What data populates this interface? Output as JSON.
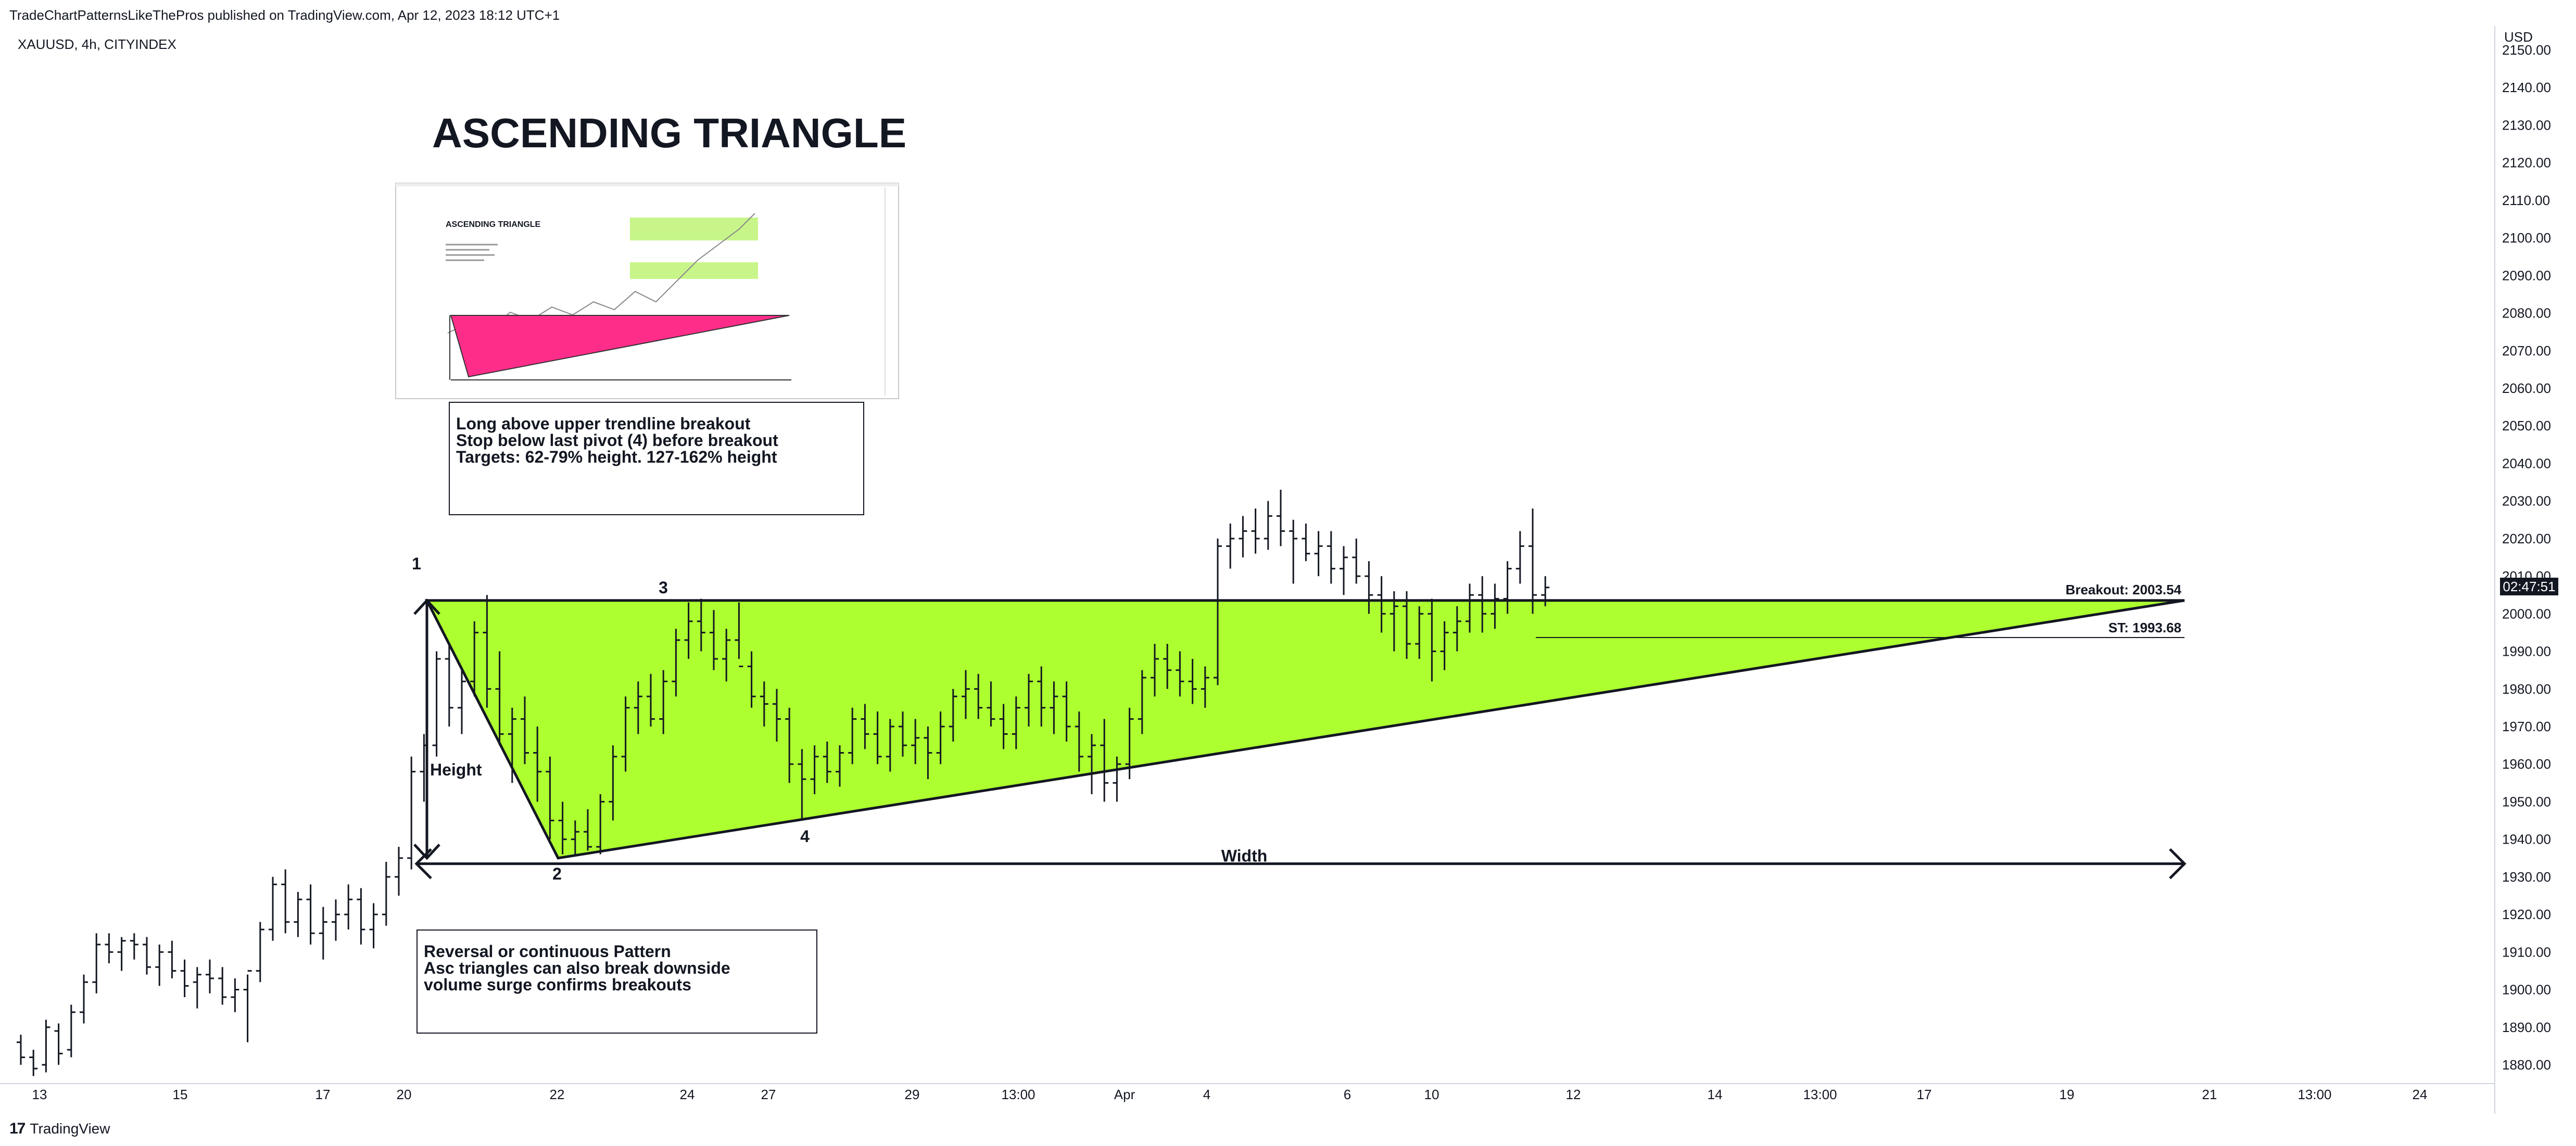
{
  "header": {
    "published": "TradeChartPatternsLikeThePros published on TradingView.com, Apr 12, 2023 18:12 UTC+1",
    "symbol": "XAUUSD, 4h, CITYINDEX",
    "currency": "USD",
    "current_price_tag": "02:47:51"
  },
  "footer": {
    "brand_logo": "17",
    "brand": "TradingView"
  },
  "annotations": {
    "title": "ASCENDING TRIANGLE",
    "note_top": [
      "Long above upper trendline breakout",
      "Stop below last pivot (4) before breakout",
      "Targets: 62-79% height. 127-162% height"
    ],
    "note_bottom": [
      "Reversal or continuous Pattern",
      "Asc triangles can also break downside",
      "volume surge confirms breakouts"
    ],
    "pivot_labels": [
      "1",
      "2",
      "3",
      "4"
    ],
    "height_label": "Height",
    "width_label": "Width",
    "breakout_label": "Breakout: 2003.54",
    "stop_label": "ST: 1993.68"
  },
  "colors": {
    "triangle_fill": "#adff2f",
    "thumbnail_triangle": "#ff2d8a",
    "line": "#131722",
    "background": "#ffffff"
  },
  "chart_data": {
    "type": "ohlc",
    "ylim": [
      1875,
      2155
    ],
    "y_ticks": [
      1880,
      1890,
      1900,
      1910,
      1920,
      1930,
      1940,
      1950,
      1960,
      1970,
      1980,
      1990,
      2000,
      2010,
      2020,
      2030,
      2040,
      2050,
      2060,
      2070,
      2080,
      2090,
      2100,
      2110,
      2120,
      2130,
      2140,
      2150
    ],
    "y_tick_labels": [
      "1880.00",
      "1890.00",
      "1900.00",
      "1910.00",
      "1920.00",
      "1930.00",
      "1940.00",
      "1950.00",
      "1960.00",
      "1970.00",
      "1980.00",
      "1990.00",
      "2000.00",
      "2010.00",
      "2020.00",
      "2030.00",
      "2040.00",
      "2050.00",
      "2060.00",
      "2070.00",
      "2080.00",
      "2090.00",
      "2100.00",
      "2110.00",
      "2120.00",
      "2130.00",
      "2140.00",
      "2150.00"
    ],
    "x_tick_labels": [
      "13",
      "15",
      "17",
      "20",
      "22",
      "24",
      "27",
      "29",
      "13:00",
      "Apr",
      "4",
      "6",
      "10",
      "12",
      "14",
      "13:00",
      "17",
      "19",
      "21",
      "13:00",
      "24"
    ],
    "bars_per_day": 6,
    "ohlc": [
      [
        1886,
        1888,
        1880,
        1882
      ],
      [
        1882,
        1884,
        1877,
        1879
      ],
      [
        1880,
        1892,
        1878,
        1890
      ],
      [
        1889,
        1891,
        1880,
        1883
      ],
      [
        1884,
        1896,
        1882,
        1894
      ],
      [
        1894,
        1904,
        1891,
        1902
      ],
      [
        1902,
        1915,
        1899,
        1912
      ],
      [
        1912,
        1915,
        1907,
        1910
      ],
      [
        1910,
        1914,
        1905,
        1913
      ],
      [
        1913,
        1915,
        1908,
        1912
      ],
      [
        1912,
        1914,
        1904,
        1906
      ],
      [
        1906,
        1912,
        1901,
        1910
      ],
      [
        1910,
        1913,
        1903,
        1905
      ],
      [
        1905,
        1908,
        1898,
        1901
      ],
      [
        1902,
        1906,
        1895,
        1904
      ],
      [
        1904,
        1908,
        1899,
        1903
      ],
      [
        1903,
        1906,
        1896,
        1898
      ],
      [
        1898,
        1903,
        1894,
        1900
      ],
      [
        1900,
        1904,
        1886,
        1905
      ],
      [
        1905,
        1918,
        1902,
        1916
      ],
      [
        1916,
        1930,
        1913,
        1928
      ],
      [
        1928,
        1932,
        1915,
        1918
      ],
      [
        1918,
        1926,
        1914,
        1924
      ],
      [
        1924,
        1928,
        1912,
        1915
      ],
      [
        1915,
        1922,
        1908,
        1918
      ],
      [
        1918,
        1924,
        1913,
        1920
      ],
      [
        1920,
        1928,
        1916,
        1924
      ],
      [
        1924,
        1927,
        1912,
        1916
      ],
      [
        1916,
        1923,
        1911,
        1920
      ],
      [
        1920,
        1934,
        1917,
        1930
      ],
      [
        1930,
        1938,
        1925,
        1935
      ],
      [
        1935,
        1962,
        1932,
        1958
      ],
      [
        1958,
        1968,
        1950,
        1965
      ],
      [
        1965,
        1990,
        1962,
        1988
      ],
      [
        1988,
        1992,
        1970,
        1975
      ],
      [
        1975,
        1985,
        1968,
        1982
      ],
      [
        1982,
        1998,
        1978,
        1995
      ],
      [
        1995,
        2005,
        1975,
        1980
      ],
      [
        1980,
        1990,
        1965,
        1968
      ],
      [
        1968,
        1975,
        1955,
        1972
      ],
      [
        1972,
        1978,
        1960,
        1963
      ],
      [
        1963,
        1970,
        1950,
        1958
      ],
      [
        1958,
        1962,
        1940,
        1945
      ],
      [
        1945,
        1950,
        1936,
        1940
      ],
      [
        1940,
        1945,
        1936,
        1942
      ],
      [
        1942,
        1948,
        1937,
        1938
      ],
      [
        1938,
        1952,
        1936,
        1950
      ],
      [
        1950,
        1965,
        1945,
        1962
      ],
      [
        1962,
        1978,
        1958,
        1975
      ],
      [
        1975,
        1982,
        1968,
        1978
      ],
      [
        1978,
        1984,
        1970,
        1972
      ],
      [
        1972,
        1985,
        1968,
        1982
      ],
      [
        1982,
        1996,
        1978,
        1993
      ],
      [
        1993,
        2003,
        1988,
        1998
      ],
      [
        1998,
        2004,
        1990,
        1995
      ],
      [
        1995,
        2001,
        1985,
        1988
      ],
      [
        1988,
        1996,
        1982,
        1993
      ],
      [
        1993,
        2003,
        1988,
        1986
      ],
      [
        1986,
        1990,
        1975,
        1978
      ],
      [
        1978,
        1982,
        1970,
        1976
      ],
      [
        1976,
        1980,
        1966,
        1972
      ],
      [
        1972,
        1975,
        1955,
        1960
      ],
      [
        1960,
        1964,
        1945,
        1956
      ],
      [
        1956,
        1965,
        1952,
        1962
      ],
      [
        1962,
        1966,
        1955,
        1958
      ],
      [
        1958,
        1965,
        1954,
        1963
      ],
      [
        1963,
        1975,
        1960,
        1972
      ],
      [
        1972,
        1976,
        1964,
        1968
      ],
      [
        1968,
        1974,
        1960,
        1962
      ],
      [
        1962,
        1972,
        1958,
        1970
      ],
      [
        1970,
        1974,
        1962,
        1965
      ],
      [
        1965,
        1972,
        1960,
        1967
      ],
      [
        1967,
        1970,
        1956,
        1963
      ],
      [
        1963,
        1974,
        1960,
        1970
      ],
      [
        1970,
        1980,
        1966,
        1978
      ],
      [
        1978,
        1985,
        1972,
        1980
      ],
      [
        1980,
        1984,
        1972,
        1975
      ],
      [
        1975,
        1982,
        1970,
        1972
      ],
      [
        1972,
        1976,
        1964,
        1968
      ],
      [
        1968,
        1978,
        1964,
        1975
      ],
      [
        1975,
        1984,
        1970,
        1982
      ],
      [
        1982,
        1986,
        1970,
        1975
      ],
      [
        1975,
        1982,
        1968,
        1978
      ],
      [
        1978,
        1982,
        1966,
        1970
      ],
      [
        1970,
        1974,
        1958,
        1962
      ],
      [
        1962,
        1968,
        1952,
        1965
      ],
      [
        1965,
        1972,
        1950,
        1955
      ],
      [
        1955,
        1962,
        1950,
        1960
      ],
      [
        1960,
        1975,
        1956,
        1972
      ],
      [
        1972,
        1985,
        1968,
        1983
      ],
      [
        1983,
        1992,
        1978,
        1988
      ],
      [
        1988,
        1992,
        1980,
        1985
      ],
      [
        1985,
        1990,
        1978,
        1982
      ],
      [
        1982,
        1988,
        1976,
        1980
      ],
      [
        1980,
        1986,
        1975,
        1983
      ],
      [
        1983,
        2020,
        1981,
        2018
      ],
      [
        2018,
        2024,
        2012,
        2020
      ],
      [
        2020,
        2026,
        2015,
        2022
      ],
      [
        2022,
        2028,
        2016,
        2020
      ],
      [
        2020,
        2030,
        2017,
        2026
      ],
      [
        2026,
        2033,
        2018,
        2022
      ],
      [
        2022,
        2025,
        2008,
        2020
      ],
      [
        2020,
        2024,
        2014,
        2016
      ],
      [
        2016,
        2022,
        2010,
        2018
      ],
      [
        2018,
        2022,
        2008,
        2012
      ],
      [
        2012,
        2018,
        2005,
        2015
      ],
      [
        2015,
        2020,
        2008,
        2010
      ],
      [
        2010,
        2014,
        2000,
        2005
      ],
      [
        2005,
        2010,
        1995,
        2000
      ],
      [
        2000,
        2006,
        1990,
        2002
      ],
      [
        2002,
        2006,
        1988,
        1992
      ],
      [
        1992,
        2002,
        1988,
        2000
      ],
      [
        2000,
        2004,
        1982,
        1990
      ],
      [
        1990,
        1998,
        1985,
        1995
      ],
      [
        1995,
        2002,
        1990,
        1998
      ],
      [
        1998,
        2008,
        1995,
        2005
      ],
      [
        2005,
        2010,
        1995,
        2000
      ],
      [
        2000,
        2008,
        1996,
        2004
      ],
      [
        2004,
        2014,
        2000,
        2012
      ],
      [
        2012,
        2022,
        2008,
        2018
      ],
      [
        2018,
        2028,
        2000,
        2005
      ],
      [
        2005,
        2010,
        2002,
        2007
      ]
    ]
  }
}
